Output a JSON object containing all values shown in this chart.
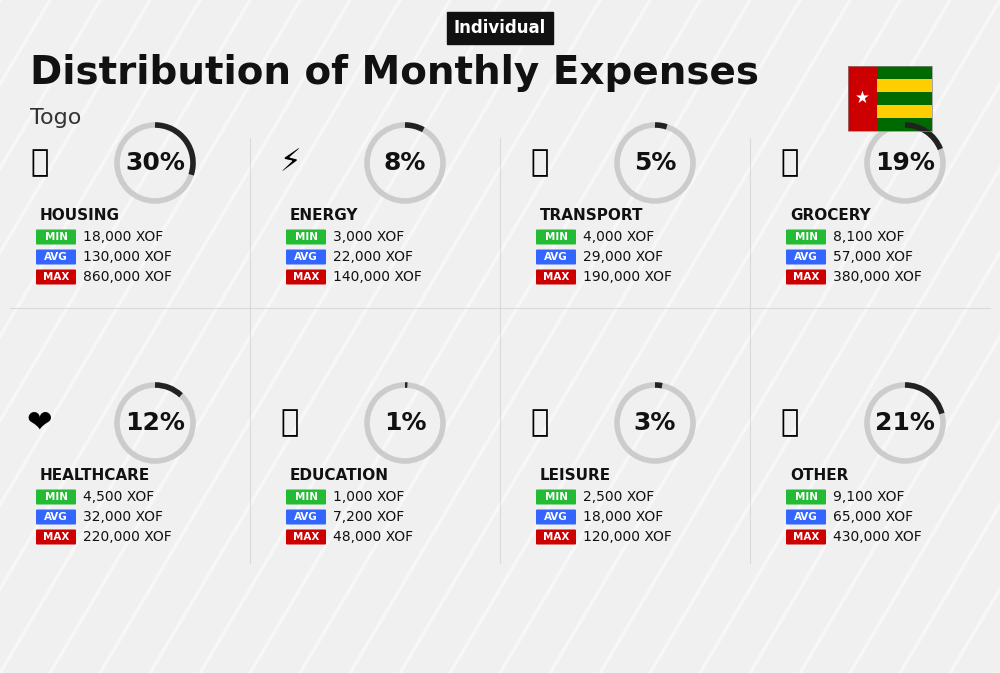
{
  "title": "Distribution of Monthly Expenses",
  "subtitle": "Togo",
  "badge": "Individual",
  "bg_color": "#f0f0f0",
  "categories": [
    {
      "name": "HOUSING",
      "percent": 30,
      "min": "18,000 XOF",
      "avg": "130,000 XOF",
      "max": "860,000 XOF",
      "row": 0,
      "col": 0
    },
    {
      "name": "ENERGY",
      "percent": 8,
      "min": "3,000 XOF",
      "avg": "22,000 XOF",
      "max": "140,000 XOF",
      "row": 0,
      "col": 1
    },
    {
      "name": "TRANSPORT",
      "percent": 5,
      "min": "4,000 XOF",
      "avg": "29,000 XOF",
      "max": "190,000 XOF",
      "row": 0,
      "col": 2
    },
    {
      "name": "GROCERY",
      "percent": 19,
      "min": "8,100 XOF",
      "avg": "57,000 XOF",
      "max": "380,000 XOF",
      "row": 0,
      "col": 3
    },
    {
      "name": "HEALTHCARE",
      "percent": 12,
      "min": "4,500 XOF",
      "avg": "32,000 XOF",
      "max": "220,000 XOF",
      "row": 1,
      "col": 0
    },
    {
      "name": "EDUCATION",
      "percent": 1,
      "min": "1,000 XOF",
      "avg": "7,200 XOF",
      "max": "48,000 XOF",
      "row": 1,
      "col": 1
    },
    {
      "name": "LEISURE",
      "percent": 3,
      "min": "2,500 XOF",
      "avg": "18,000 XOF",
      "max": "120,000 XOF",
      "row": 1,
      "col": 2
    },
    {
      "name": "OTHER",
      "percent": 21,
      "min": "9,100 XOF",
      "avg": "65,000 XOF",
      "max": "430,000 XOF",
      "row": 1,
      "col": 3
    }
  ],
  "min_color": "#22bb33",
  "avg_color": "#3366ff",
  "max_color": "#cc0000",
  "label_text_color": "#ffffff",
  "value_text_color": "#111111",
  "circle_color": "#222222",
  "circle_bg": "#cccccc",
  "title_fontsize": 28,
  "subtitle_fontsize": 16,
  "badge_fontsize": 12,
  "cat_fontsize": 11,
  "val_fontsize": 10,
  "pct_fontsize": 18
}
